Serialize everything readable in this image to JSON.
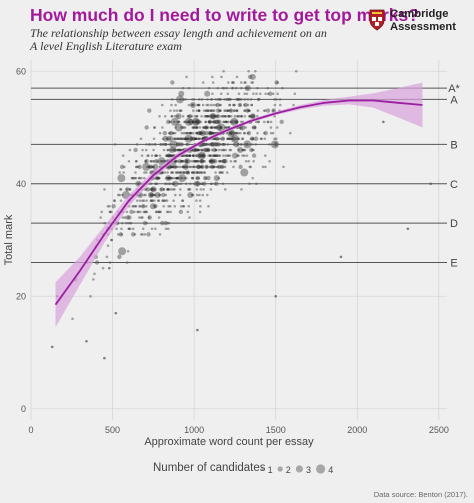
{
  "header": {
    "title": "How much do I need to write to get top marks?",
    "subtitle": "The relationship between essay length and achievement on an A level English Literature exam",
    "logo_line1": "Cambridge",
    "logo_line2": "Assessment"
  },
  "legend": {
    "title": "Number of candidates",
    "sizes": [
      "1",
      "2",
      "3",
      "4"
    ]
  },
  "source": "Data source: Benton (2017).",
  "colors": {
    "title": "#a21a9b",
    "trend_line": "#9b1fa0",
    "confidence_band": "#d8a3dc",
    "points": "#333333",
    "background": "#efefef"
  },
  "chart_data": {
    "type": "scatter",
    "title": "How much do I need to write to get top marks?",
    "xlabel": "Approximate word count per essay",
    "ylabel": "Total mark",
    "xlim": [
      0,
      2550
    ],
    "ylim": [
      -2,
      62
    ],
    "xticks": [
      0,
      500,
      1000,
      1500,
      2000,
      2500
    ],
    "yticks": [
      0,
      20,
      40,
      60
    ],
    "grid": true,
    "grade_boundaries": [
      {
        "label": "A*",
        "y": 57
      },
      {
        "label": "A",
        "y": 55
      },
      {
        "label": "B",
        "y": 47
      },
      {
        "label": "C",
        "y": 40
      },
      {
        "label": "D",
        "y": 33
      },
      {
        "label": "E",
        "y": 26
      }
    ],
    "trend": {
      "x": [
        150,
        300,
        450,
        600,
        750,
        900,
        1050,
        1200,
        1350,
        1500,
        1650,
        1800,
        1950,
        2100,
        2250,
        2400
      ],
      "y": [
        18.5,
        24.5,
        31.0,
        37.0,
        41.5,
        45.0,
        47.5,
        49.5,
        51.2,
        52.5,
        53.6,
        54.4,
        54.8,
        54.8,
        54.4,
        54.0
      ],
      "lower": [
        14.5,
        22.0,
        29.5,
        36.0,
        40.8,
        44.5,
        47.2,
        49.2,
        50.9,
        52.2,
        53.2,
        53.9,
        54.1,
        53.5,
        51.8,
        50.0
      ],
      "upper": [
        22.5,
        27.0,
        32.5,
        38.0,
        42.2,
        45.5,
        47.8,
        49.8,
        51.5,
        52.8,
        54.0,
        54.9,
        55.5,
        56.1,
        57.0,
        58.0
      ]
    },
    "points_summary": {
      "description_n": "dense cloud of candidates, x 100-2450, y 8-60",
      "outliers": [
        {
          "x": 130,
          "y": 11
        },
        {
          "x": 160,
          "y": 20
        },
        {
          "x": 340,
          "y": 12
        },
        {
          "x": 450,
          "y": 9
        },
        {
          "x": 480,
          "y": 25
        },
        {
          "x": 520,
          "y": 17
        },
        {
          "x": 1020,
          "y": 14
        },
        {
          "x": 1500,
          "y": 20
        },
        {
          "x": 1900,
          "y": 27
        },
        {
          "x": 2450,
          "y": 40
        },
        {
          "x": 2310,
          "y": 32
        },
        {
          "x": 2160,
          "y": 51
        }
      ]
    }
  }
}
